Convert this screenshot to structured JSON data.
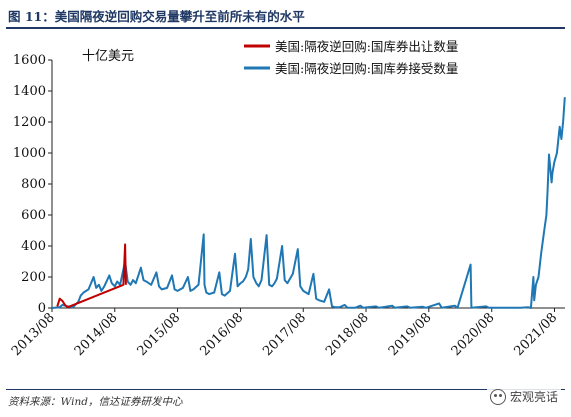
{
  "header": {
    "figure_title": "图 11：美国隔夜逆回购交易量攀升至前所未有的水平"
  },
  "footer": {
    "source": "资料来源：Wind，信达证券研发中心",
    "watermark": "宏观亮话"
  },
  "colors": {
    "navy": "#1f3864",
    "series_red": "#c00000",
    "series_blue": "#1f77b4"
  },
  "chart_data": {
    "type": "line",
    "title": "",
    "unit_label": "十亿美元",
    "xlabel": "",
    "ylabel": "",
    "ylim": [
      0,
      1600
    ],
    "yticks": [
      0,
      200,
      400,
      600,
      800,
      1000,
      1200,
      1400,
      1600
    ],
    "xlim": [
      "2013-08",
      "2021-10"
    ],
    "xticks": [
      "2013/08",
      "2014/08",
      "2015/08",
      "2016/08",
      "2017/08",
      "2018/08",
      "2019/08",
      "2020/08",
      "2021/08"
    ],
    "grid": false,
    "legend_position": "top-right",
    "icon": "wechat-icon",
    "series": [
      {
        "name": "美国:隔夜逆回购:国库券出让数量",
        "color": "#c00000",
        "points": [
          [
            "2013-09-01",
            10
          ],
          [
            "2013-09-15",
            60
          ],
          [
            "2013-10-01",
            45
          ],
          [
            "2013-10-15",
            20
          ],
          [
            "2013-11-01",
            5
          ],
          [
            "2014-09-20",
            150
          ],
          [
            "2014-09-30",
            410
          ],
          [
            "2014-10-05",
            150
          ]
        ]
      },
      {
        "name": "美国:隔夜逆回购:国库券接受数量",
        "color": "#1f77b4",
        "points": [
          [
            "2013-08-01",
            0
          ],
          [
            "2013-09-15",
            5
          ],
          [
            "2013-10-01",
            20
          ],
          [
            "2013-11-01",
            10
          ],
          [
            "2013-12-01",
            5
          ],
          [
            "2014-01-01",
            40
          ],
          [
            "2014-01-15",
            80
          ],
          [
            "2014-02-01",
            100
          ],
          [
            "2014-03-01",
            120
          ],
          [
            "2014-03-31",
            200
          ],
          [
            "2014-04-15",
            130
          ],
          [
            "2014-05-01",
            150
          ],
          [
            "2014-05-15",
            110
          ],
          [
            "2014-06-01",
            140
          ],
          [
            "2014-06-30",
            210
          ],
          [
            "2014-07-15",
            160
          ],
          [
            "2014-08-01",
            140
          ],
          [
            "2014-08-15",
            170
          ],
          [
            "2014-09-01",
            150
          ],
          [
            "2014-09-30",
            300
          ],
          [
            "2014-10-15",
            170
          ],
          [
            "2014-11-01",
            150
          ],
          [
            "2014-11-15",
            180
          ],
          [
            "2014-12-01",
            160
          ],
          [
            "2014-12-31",
            260
          ],
          [
            "2015-01-15",
            180
          ],
          [
            "2015-02-01",
            170
          ],
          [
            "2015-03-01",
            150
          ],
          [
            "2015-03-31",
            230
          ],
          [
            "2015-04-15",
            140
          ],
          [
            "2015-05-01",
            120
          ],
          [
            "2015-06-01",
            130
          ],
          [
            "2015-06-30",
            210
          ],
          [
            "2015-07-15",
            120
          ],
          [
            "2015-08-01",
            110
          ],
          [
            "2015-09-01",
            130
          ],
          [
            "2015-09-30",
            200
          ],
          [
            "2015-10-15",
            110
          ],
          [
            "2015-11-01",
            120
          ],
          [
            "2015-12-01",
            150
          ],
          [
            "2015-12-31",
            475
          ],
          [
            "2016-01-05",
            150
          ],
          [
            "2016-01-15",
            100
          ],
          [
            "2016-02-01",
            90
          ],
          [
            "2016-03-01",
            100
          ],
          [
            "2016-03-31",
            230
          ],
          [
            "2016-04-15",
            90
          ],
          [
            "2016-05-01",
            80
          ],
          [
            "2016-06-01",
            110
          ],
          [
            "2016-06-30",
            350
          ],
          [
            "2016-07-15",
            140
          ],
          [
            "2016-08-01",
            160
          ],
          [
            "2016-08-15",
            170
          ],
          [
            "2016-09-01",
            200
          ],
          [
            "2016-09-15",
            250
          ],
          [
            "2016-09-30",
            445
          ],
          [
            "2016-10-15",
            200
          ],
          [
            "2016-11-01",
            160
          ],
          [
            "2016-11-15",
            140
          ],
          [
            "2016-12-01",
            180
          ],
          [
            "2016-12-31",
            470
          ],
          [
            "2017-01-15",
            150
          ],
          [
            "2017-02-01",
            140
          ],
          [
            "2017-02-15",
            160
          ],
          [
            "2017-03-01",
            190
          ],
          [
            "2017-03-31",
            400
          ],
          [
            "2017-04-15",
            180
          ],
          [
            "2017-05-01",
            160
          ],
          [
            "2017-06-01",
            220
          ],
          [
            "2017-06-30",
            380
          ],
          [
            "2017-07-15",
            140
          ],
          [
            "2017-08-01",
            110
          ],
          [
            "2017-09-01",
            90
          ],
          [
            "2017-09-29",
            220
          ],
          [
            "2017-10-15",
            60
          ],
          [
            "2017-11-01",
            50
          ],
          [
            "2017-12-01",
            40
          ],
          [
            "2017-12-29",
            120
          ],
          [
            "2018-01-15",
            10
          ],
          [
            "2018-02-01",
            5
          ],
          [
            "2018-03-01",
            5
          ],
          [
            "2018-03-30",
            20
          ],
          [
            "2018-04-15",
            2
          ],
          [
            "2018-06-01",
            2
          ],
          [
            "2018-06-29",
            15
          ],
          [
            "2018-07-15",
            1
          ],
          [
            "2018-09-28",
            10
          ],
          [
            "2018-10-15",
            1
          ],
          [
            "2018-12-31",
            15
          ],
          [
            "2019-01-15",
            1
          ],
          [
            "2019-03-29",
            10
          ],
          [
            "2019-04-15",
            1
          ],
          [
            "2019-06-28",
            8
          ],
          [
            "2019-07-15",
            1
          ],
          [
            "2019-09-30",
            30
          ],
          [
            "2019-10-15",
            1
          ],
          [
            "2019-12-31",
            15
          ],
          [
            "2020-01-15",
            1
          ],
          [
            "2020-03-31",
            280
          ],
          [
            "2020-04-05",
            1
          ],
          [
            "2020-06-30",
            10
          ],
          [
            "2020-07-15",
            1
          ],
          [
            "2021-01-15",
            1
          ],
          [
            "2021-03-01",
            5
          ],
          [
            "2021-03-17",
            0
          ],
          [
            "2021-03-31",
            200
          ],
          [
            "2021-04-05",
            50
          ],
          [
            "2021-04-15",
            150
          ],
          [
            "2021-04-30",
            200
          ],
          [
            "2021-05-15",
            350
          ],
          [
            "2021-05-31",
            480
          ],
          [
            "2021-06-15",
            600
          ],
          [
            "2021-06-21",
            745
          ],
          [
            "2021-06-30",
            990
          ],
          [
            "2021-07-15",
            810
          ],
          [
            "2021-07-20",
            870
          ],
          [
            "2021-07-31",
            940
          ],
          [
            "2021-08-15",
            1000
          ],
          [
            "2021-08-31",
            1170
          ],
          [
            "2021-09-10",
            1090
          ],
          [
            "2021-09-20",
            1200
          ],
          [
            "2021-09-30",
            1360
          ]
        ]
      }
    ]
  }
}
